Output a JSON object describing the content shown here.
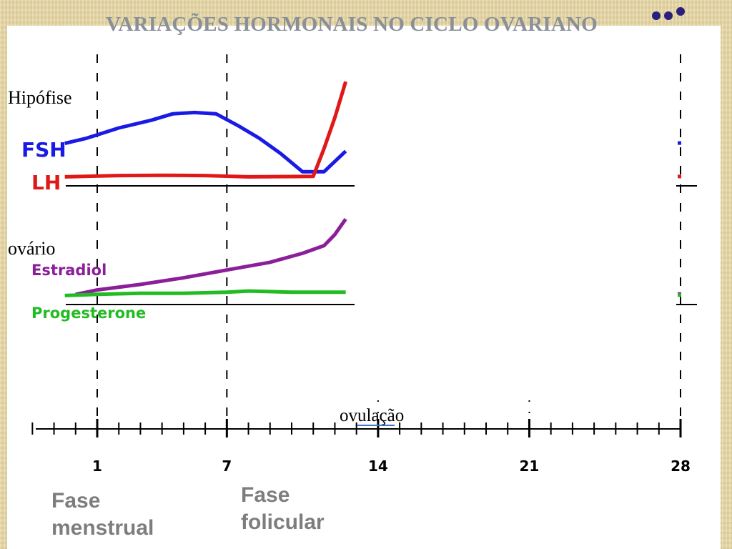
{
  "slide": {
    "title": "VARIAÇÕES HORMONAIS NO CICLO OVARIANO",
    "background_color": "#e8d9a8"
  },
  "labels": {
    "hipofise": "Hipófise",
    "ovario": "ovário",
    "ovulacao": "ovulação"
  },
  "phases": {
    "menstrual": [
      "Fase",
      "menstrual"
    ],
    "folicular": [
      "Fase",
      "folicular"
    ]
  },
  "chart_data": [
    {
      "type": "line",
      "panel": "hipofise",
      "x_unit": "day",
      "series": [
        {
          "name": "FSH",
          "color": "#1a1ae6",
          "points": [
            [
              -0.5,
              14
            ],
            [
              0.5,
              16
            ],
            [
              2,
              20
            ],
            [
              3.5,
              23
            ],
            [
              4.5,
              25.5
            ],
            [
              5.5,
              26
            ],
            [
              6.5,
              25.5
            ],
            [
              7.5,
              21
            ],
            [
              8.5,
              16
            ],
            [
              9.5,
              10
            ],
            [
              10.5,
              3
            ],
            [
              11.5,
              3
            ],
            [
              12.5,
              11
            ]
          ]
        },
        {
          "name": "LH",
          "color": "#e01818",
          "points": [
            [
              -0.5,
              1
            ],
            [
              2,
              1.5
            ],
            [
              4,
              1.6
            ],
            [
              6,
              1.5
            ],
            [
              8,
              1
            ],
            [
              10,
              1.1
            ],
            [
              11,
              1.2
            ],
            [
              11.5,
              12
            ],
            [
              12,
              24
            ],
            [
              12.5,
              38
            ]
          ]
        }
      ],
      "visible_x_range": [
        -0.5,
        12.6
      ],
      "edge_marks_at_day": 28
    },
    {
      "type": "line",
      "panel": "ovario",
      "x_unit": "day",
      "series": [
        {
          "name": "Estradiol",
          "color": "#8a1f98",
          "points": [
            [
              0,
              2
            ],
            [
              1,
              4
            ],
            [
              3,
              6.5
            ],
            [
              5,
              9.5
            ],
            [
              7,
              13
            ],
            [
              9,
              16.5
            ],
            [
              10.5,
              20.5
            ],
            [
              11.5,
              24
            ],
            [
              12,
              29
            ],
            [
              12.5,
              36
            ]
          ]
        },
        {
          "name": "Progesterone",
          "color": "#22bb22",
          "points": [
            [
              -0.5,
              1.5
            ],
            [
              1,
              2
            ],
            [
              3,
              2.5
            ],
            [
              5,
              2.5
            ],
            [
              7,
              3
            ],
            [
              8,
              3.5
            ],
            [
              10,
              3
            ],
            [
              12.5,
              3
            ]
          ]
        }
      ],
      "visible_x_range": [
        -0.5,
        12.6
      ],
      "edge_marks_at_day": 28
    },
    {
      "type": "axis",
      "x_ticks": [
        1,
        7,
        14,
        21,
        28
      ],
      "x_tick_labels": [
        "1",
        "7",
        "14",
        "21",
        "28"
      ],
      "x_range": [
        -2,
        28
      ],
      "dashed_guides_at": [
        1,
        7,
        28
      ]
    }
  ]
}
